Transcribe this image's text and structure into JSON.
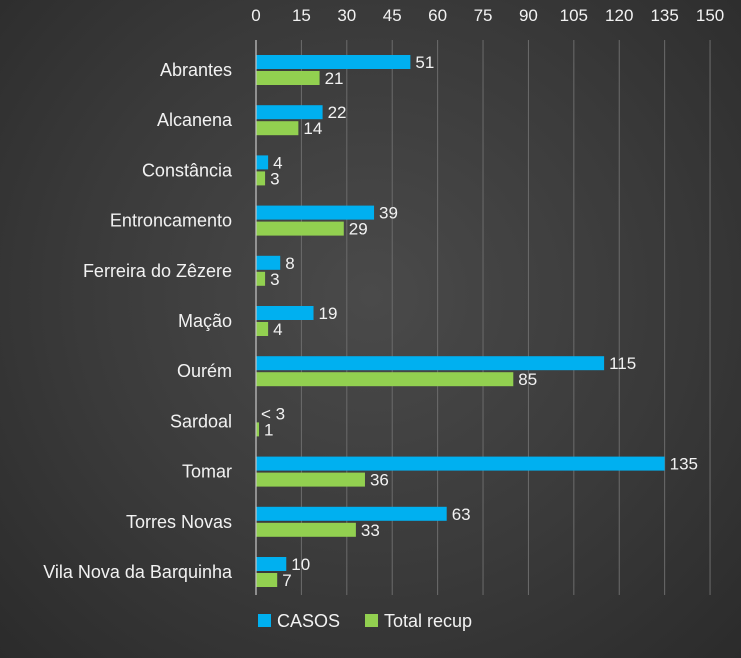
{
  "chart_data": {
    "type": "bar",
    "orientation": "horizontal",
    "categories": [
      "Abrantes",
      "Alcanena",
      "Constância",
      "Entroncamento",
      "Ferreira do Zêzere",
      "Mação",
      "Ourém",
      "Sardoal",
      "Tomar",
      "Torres Novas",
      "Vila Nova da Barquinha"
    ],
    "series": [
      {
        "name": "CASOS",
        "color": "#00b0f0",
        "values": [
          51,
          22,
          4,
          39,
          8,
          19,
          115,
          0,
          135,
          63,
          10
        ],
        "labels": [
          "51",
          "22",
          "4",
          "39",
          "8",
          "19",
          "115",
          "< 3",
          "135",
          "63",
          "10"
        ]
      },
      {
        "name": "Total recup",
        "color": "#92d050",
        "values": [
          21,
          14,
          3,
          29,
          3,
          4,
          85,
          1,
          36,
          33,
          7
        ],
        "labels": [
          "21",
          "14",
          "3",
          "29",
          "3",
          "4",
          "85",
          "1",
          "36",
          "33",
          "7"
        ]
      }
    ],
    "xlim": [
      0,
      150
    ],
    "xticks": [
      "0",
      "15",
      "30",
      "45",
      "60",
      "75",
      "90",
      "105",
      "120",
      "135",
      "150"
    ],
    "x_axis_position": "top",
    "grid": true,
    "legend": "bottom"
  }
}
